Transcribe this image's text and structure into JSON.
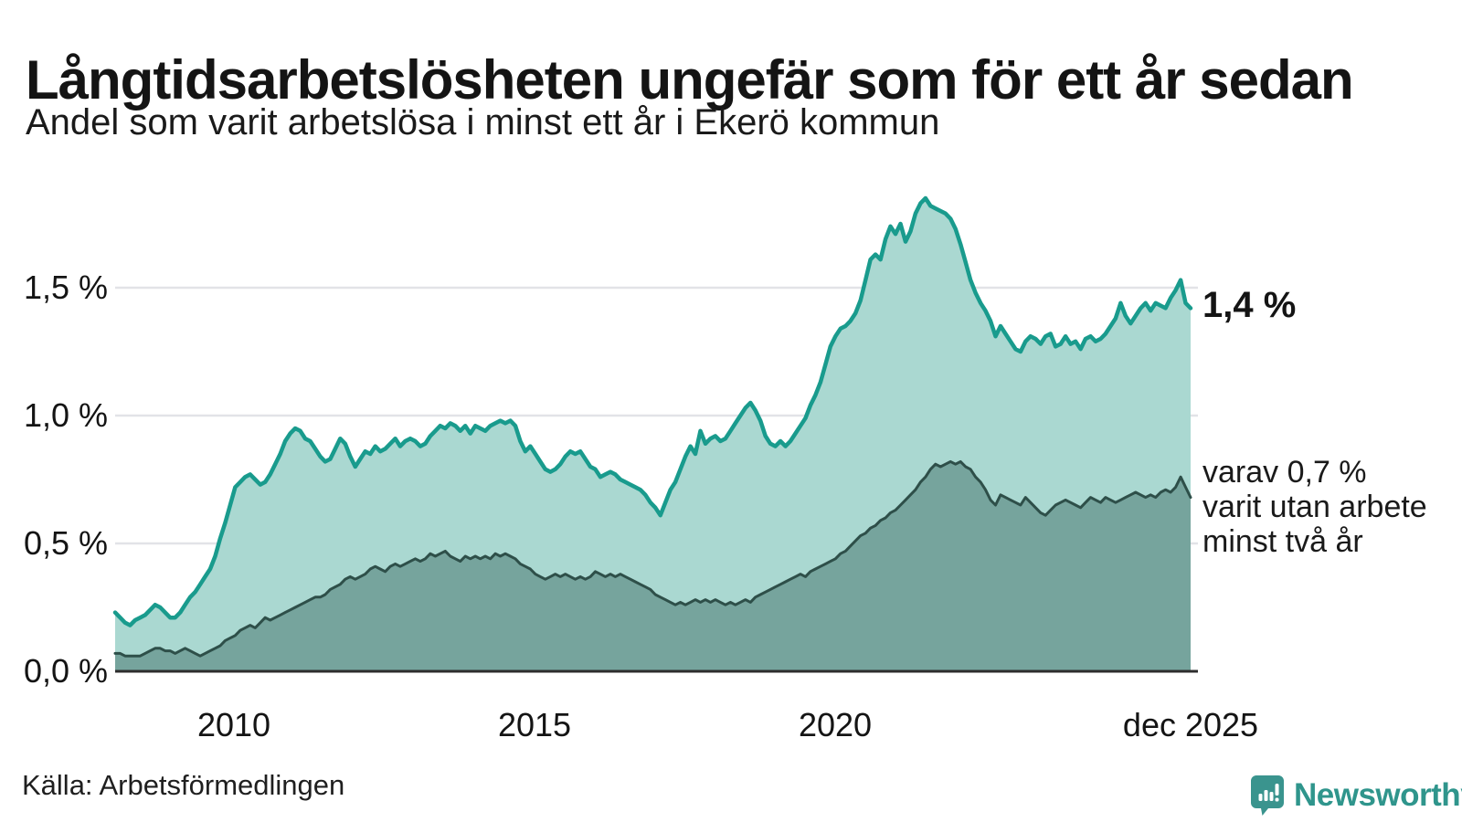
{
  "header": {
    "title": "Långtidsarbetslösheten ungefär som för ett år sedan",
    "subtitle": "Andel som varit arbetslösa i minst ett år i Ekerö kommun"
  },
  "annotations": {
    "latest_total": "1,4 %",
    "two_year_line1": "varav 0,7 %",
    "two_year_line2": "varit utan arbete",
    "two_year_line3": "minst två år"
  },
  "source": {
    "label": "Källa: Arbetsförmedlingen"
  },
  "logo": {
    "text": "Newsworthy",
    "icon": "newsworthy-speech-bubble-chart-icon",
    "color": "#2f958c"
  },
  "colors": {
    "total_line": "#199b8d",
    "total_fill": "#aad8d1",
    "two_year_line": "#2e4f49",
    "two_year_fill": "#76a49d",
    "gridline": "#e2e3e7",
    "baseline": "#2d2d2d",
    "text": "#141414"
  },
  "chart_data": {
    "type": "area",
    "title": "Långtidsarbetslösheten ungefär som för ett år sedan",
    "subtitle": "Andel som varit arbetslösa i minst ett år i Ekerö kommun",
    "unit": "%",
    "frequency": "monthly",
    "x_start": "jan 2008",
    "x_end": "dec 2025",
    "ylim": [
      0,
      1.9
    ],
    "grid": "horizontal",
    "legend": "none",
    "y_tick_labels": [
      "0,0 %",
      "0,5 %",
      "1,0 %",
      "1,5 %"
    ],
    "y_tick_values": [
      0,
      0.5,
      1.0,
      1.5
    ],
    "x_ticks": [
      {
        "label": "2010",
        "year": 2010.0
      },
      {
        "label": "2015",
        "year": 2015.0
      },
      {
        "label": "2020",
        "year": 2020.0
      },
      {
        "label": "dec 2025",
        "year": 2025.9167
      }
    ],
    "series": [
      {
        "name": "Andel arbetslösa minst ett år",
        "latest_label": "1,4 %",
        "color": "#199b8d",
        "fill": "#aad8d1",
        "values": [
          0.23,
          0.21,
          0.19,
          0.18,
          0.2,
          0.21,
          0.22,
          0.24,
          0.26,
          0.25,
          0.23,
          0.21,
          0.21,
          0.23,
          0.26,
          0.29,
          0.31,
          0.34,
          0.37,
          0.4,
          0.45,
          0.52,
          0.58,
          0.65,
          0.72,
          0.74,
          0.76,
          0.77,
          0.75,
          0.73,
          0.74,
          0.77,
          0.81,
          0.85,
          0.9,
          0.93,
          0.95,
          0.94,
          0.91,
          0.9,
          0.87,
          0.84,
          0.82,
          0.83,
          0.87,
          0.91,
          0.89,
          0.84,
          0.8,
          0.83,
          0.86,
          0.85,
          0.88,
          0.86,
          0.87,
          0.89,
          0.91,
          0.88,
          0.9,
          0.91,
          0.9,
          0.88,
          0.89,
          0.92,
          0.94,
          0.96,
          0.95,
          0.97,
          0.96,
          0.94,
          0.96,
          0.93,
          0.96,
          0.95,
          0.94,
          0.96,
          0.97,
          0.98,
          0.97,
          0.98,
          0.96,
          0.9,
          0.86,
          0.88,
          0.85,
          0.82,
          0.79,
          0.78,
          0.79,
          0.81,
          0.84,
          0.86,
          0.85,
          0.86,
          0.83,
          0.8,
          0.79,
          0.76,
          0.77,
          0.78,
          0.77,
          0.75,
          0.74,
          0.73,
          0.72,
          0.71,
          0.69,
          0.66,
          0.64,
          0.61,
          0.66,
          0.71,
          0.74,
          0.79,
          0.84,
          0.88,
          0.85,
          0.94,
          0.89,
          0.91,
          0.92,
          0.9,
          0.91,
          0.94,
          0.97,
          1.0,
          1.03,
          1.05,
          1.02,
          0.98,
          0.92,
          0.89,
          0.88,
          0.9,
          0.88,
          0.9,
          0.93,
          0.96,
          0.99,
          1.04,
          1.08,
          1.13,
          1.2,
          1.27,
          1.31,
          1.34,
          1.35,
          1.37,
          1.4,
          1.45,
          1.53,
          1.61,
          1.63,
          1.61,
          1.69,
          1.74,
          1.71,
          1.75,
          1.68,
          1.72,
          1.79,
          1.83,
          1.85,
          1.82,
          1.81,
          1.8,
          1.79,
          1.77,
          1.73,
          1.67,
          1.6,
          1.53,
          1.48,
          1.44,
          1.41,
          1.37,
          1.31,
          1.35,
          1.32,
          1.29,
          1.26,
          1.25,
          1.29,
          1.31,
          1.3,
          1.28,
          1.31,
          1.32,
          1.27,
          1.28,
          1.31,
          1.28,
          1.29,
          1.26,
          1.3,
          1.31,
          1.29,
          1.3,
          1.32,
          1.35,
          1.38,
          1.44,
          1.39,
          1.36,
          1.39,
          1.42,
          1.44,
          1.41,
          1.44,
          1.43,
          1.42,
          1.46,
          1.49,
          1.53,
          1.44,
          1.42
        ]
      },
      {
        "name": "varav utan arbete minst två år",
        "latest_label": "varav 0,7 % varit utan arbete minst två år",
        "color": "#2e4f49",
        "fill": "#76a49d",
        "values": [
          0.07,
          0.07,
          0.06,
          0.06,
          0.06,
          0.06,
          0.07,
          0.08,
          0.09,
          0.09,
          0.08,
          0.08,
          0.07,
          0.08,
          0.09,
          0.08,
          0.07,
          0.06,
          0.07,
          0.08,
          0.09,
          0.1,
          0.12,
          0.13,
          0.14,
          0.16,
          0.17,
          0.18,
          0.17,
          0.19,
          0.21,
          0.2,
          0.21,
          0.22,
          0.23,
          0.24,
          0.25,
          0.26,
          0.27,
          0.28,
          0.29,
          0.29,
          0.3,
          0.32,
          0.33,
          0.34,
          0.36,
          0.37,
          0.36,
          0.37,
          0.38,
          0.4,
          0.41,
          0.4,
          0.39,
          0.41,
          0.42,
          0.41,
          0.42,
          0.43,
          0.44,
          0.43,
          0.44,
          0.46,
          0.45,
          0.46,
          0.47,
          0.45,
          0.44,
          0.43,
          0.45,
          0.44,
          0.45,
          0.44,
          0.45,
          0.44,
          0.46,
          0.45,
          0.46,
          0.45,
          0.44,
          0.42,
          0.41,
          0.4,
          0.38,
          0.37,
          0.36,
          0.37,
          0.38,
          0.37,
          0.38,
          0.37,
          0.36,
          0.37,
          0.36,
          0.37,
          0.39,
          0.38,
          0.37,
          0.38,
          0.37,
          0.38,
          0.37,
          0.36,
          0.35,
          0.34,
          0.33,
          0.32,
          0.3,
          0.29,
          0.28,
          0.27,
          0.26,
          0.27,
          0.26,
          0.27,
          0.28,
          0.27,
          0.28,
          0.27,
          0.28,
          0.27,
          0.26,
          0.27,
          0.26,
          0.27,
          0.28,
          0.27,
          0.29,
          0.3,
          0.31,
          0.32,
          0.33,
          0.34,
          0.35,
          0.36,
          0.37,
          0.38,
          0.37,
          0.39,
          0.4,
          0.41,
          0.42,
          0.43,
          0.44,
          0.46,
          0.47,
          0.49,
          0.51,
          0.53,
          0.54,
          0.56,
          0.57,
          0.59,
          0.6,
          0.62,
          0.63,
          0.65,
          0.67,
          0.69,
          0.71,
          0.74,
          0.76,
          0.79,
          0.81,
          0.8,
          0.81,
          0.82,
          0.81,
          0.82,
          0.8,
          0.79,
          0.76,
          0.74,
          0.71,
          0.67,
          0.65,
          0.69,
          0.68,
          0.67,
          0.66,
          0.65,
          0.68,
          0.66,
          0.64,
          0.62,
          0.61,
          0.63,
          0.65,
          0.66,
          0.67,
          0.66,
          0.65,
          0.64,
          0.66,
          0.68,
          0.67,
          0.66,
          0.68,
          0.67,
          0.66,
          0.67,
          0.68,
          0.69,
          0.7,
          0.69,
          0.68,
          0.69,
          0.68,
          0.7,
          0.71,
          0.7,
          0.72,
          0.76,
          0.72,
          0.68
        ]
      }
    ]
  }
}
